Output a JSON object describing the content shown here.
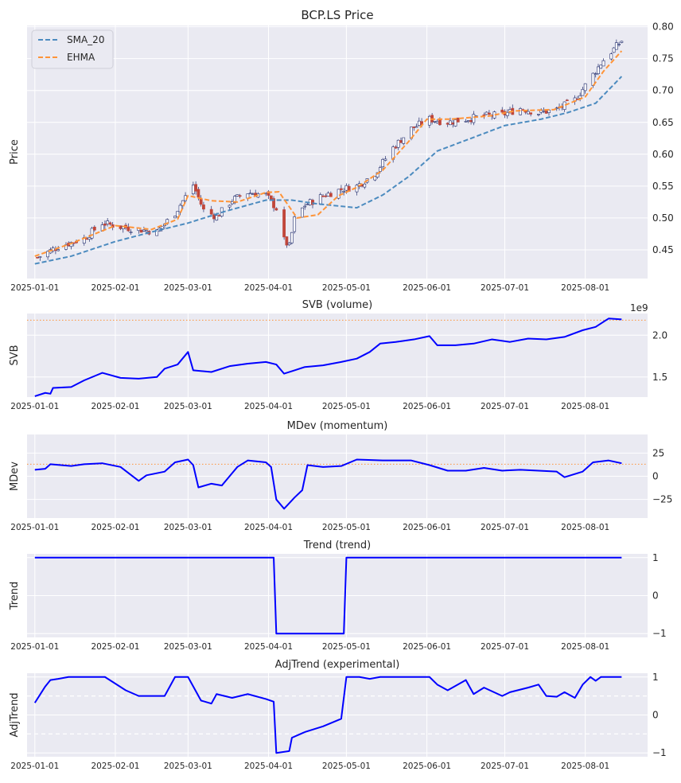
{
  "colors": {
    "panel_bg": "#eaeaf2",
    "grid": "#ffffff",
    "line": "#0000ff",
    "sma": "#4c8bbf",
    "ehma": "#ff9438",
    "ref_orange": "#ff9438",
    "candle_up": "#1f2a6b",
    "candle_down": "#c0463a"
  },
  "chart_data": [
    {
      "type": "line",
      "chart_kind": "candlestick",
      "title": "BCP.LS Price",
      "ylabel": "Price",
      "ylim": [
        0.405,
        0.802
      ],
      "yticks": [
        0.45,
        0.5,
        0.55,
        0.6,
        0.65,
        0.7,
        0.75,
        0.8
      ],
      "ytick_labels": [
        "0.45",
        "0.50",
        "0.55",
        "0.60",
        "0.65",
        "0.70",
        "0.75",
        "0.80"
      ],
      "xrange": [
        "2024-12-29",
        "2025-08-25"
      ],
      "xticks": [
        "2025-01-01",
        "2025-02-01",
        "2025-03-01",
        "2025-04-01",
        "2025-05-01",
        "2025-06-01",
        "2025-07-01",
        "2025-08-01"
      ],
      "legend": {
        "placement": "upper-left",
        "entries": [
          "SMA_20",
          "EHMA"
        ]
      },
      "grid": true,
      "close_anchors": [
        [
          "2025-01-02",
          0.438
        ],
        [
          "2025-01-10",
          0.455
        ],
        [
          "2025-01-20",
          0.468
        ],
        [
          "2025-01-27",
          0.492
        ],
        [
          "2025-02-03",
          0.486
        ],
        [
          "2025-02-10",
          0.482
        ],
        [
          "2025-02-17",
          0.478
        ],
        [
          "2025-02-24",
          0.508
        ],
        [
          "2025-03-03",
          0.552
        ],
        [
          "2025-03-07",
          0.512
        ],
        [
          "2025-03-12",
          0.502
        ],
        [
          "2025-03-18",
          0.528
        ],
        [
          "2025-03-24",
          0.54
        ],
        [
          "2025-03-31",
          0.536
        ],
        [
          "2025-04-04",
          0.515
        ],
        [
          "2025-04-07",
          0.465
        ],
        [
          "2025-04-09",
          0.455
        ],
        [
          "2025-04-11",
          0.498
        ],
        [
          "2025-04-15",
          0.52
        ],
        [
          "2025-04-22",
          0.535
        ],
        [
          "2025-04-29",
          0.545
        ],
        [
          "2025-05-05",
          0.55
        ],
        [
          "2025-05-12",
          0.57
        ],
        [
          "2025-05-19",
          0.61
        ],
        [
          "2025-05-26",
          0.64
        ],
        [
          "2025-06-02",
          0.655
        ],
        [
          "2025-06-09",
          0.65
        ],
        [
          "2025-06-16",
          0.655
        ],
        [
          "2025-06-23",
          0.66
        ],
        [
          "2025-06-30",
          0.662
        ],
        [
          "2025-07-07",
          0.672
        ],
        [
          "2025-07-14",
          0.665
        ],
        [
          "2025-07-21",
          0.67
        ],
        [
          "2025-07-28",
          0.685
        ],
        [
          "2025-08-04",
          0.725
        ],
        [
          "2025-08-08",
          0.748
        ],
        [
          "2025-08-12",
          0.765
        ],
        [
          "2025-08-15",
          0.778
        ]
      ],
      "sma_20": [
        [
          "2025-01-01",
          0.428
        ],
        [
          "2025-01-15",
          0.44
        ],
        [
          "2025-02-01",
          0.463
        ],
        [
          "2025-02-15",
          0.478
        ],
        [
          "2025-03-01",
          0.492
        ],
        [
          "2025-03-15",
          0.51
        ],
        [
          "2025-03-31",
          0.528
        ],
        [
          "2025-04-10",
          0.528
        ],
        [
          "2025-04-20",
          0.522
        ],
        [
          "2025-05-05",
          0.516
        ],
        [
          "2025-05-15",
          0.536
        ],
        [
          "2025-05-25",
          0.565
        ],
        [
          "2025-06-05",
          0.605
        ],
        [
          "2025-06-20",
          0.628
        ],
        [
          "2025-07-01",
          0.645
        ],
        [
          "2025-07-15",
          0.655
        ],
        [
          "2025-07-25",
          0.665
        ],
        [
          "2025-08-05",
          0.68
        ],
        [
          "2025-08-15",
          0.722
        ]
      ],
      "ehma": [
        [
          "2025-01-01",
          0.44
        ],
        [
          "2025-01-15",
          0.46
        ],
        [
          "2025-02-01",
          0.488
        ],
        [
          "2025-02-15",
          0.482
        ],
        [
          "2025-02-25",
          0.498
        ],
        [
          "2025-03-01",
          0.535
        ],
        [
          "2025-03-10",
          0.527
        ],
        [
          "2025-03-20",
          0.525
        ],
        [
          "2025-03-31",
          0.54
        ],
        [
          "2025-04-05",
          0.541
        ],
        [
          "2025-04-12",
          0.5
        ],
        [
          "2025-04-20",
          0.505
        ],
        [
          "2025-04-28",
          0.535
        ],
        [
          "2025-05-05",
          0.548
        ],
        [
          "2025-05-15",
          0.575
        ],
        [
          "2025-05-25",
          0.62
        ],
        [
          "2025-06-01",
          0.655
        ],
        [
          "2025-06-10",
          0.655
        ],
        [
          "2025-06-25",
          0.66
        ],
        [
          "2025-07-05",
          0.668
        ],
        [
          "2025-07-20",
          0.67
        ],
        [
          "2025-08-01",
          0.69
        ],
        [
          "2025-08-08",
          0.73
        ],
        [
          "2025-08-15",
          0.762
        ]
      ]
    },
    {
      "type": "line",
      "title": "SVB (volume)",
      "ylabel": "SVB",
      "ylim": [
        1260000000.0,
        2260000000.0
      ],
      "yticks": [
        1500000000.0,
        2000000000.0
      ],
      "ytick_labels": [
        "1.5",
        "2.0"
      ],
      "offset_label": "1e9",
      "reference_line": 2180000000.0,
      "xrange": [
        "2024-12-29",
        "2025-08-25"
      ],
      "xticks": [
        "2025-01-01",
        "2025-02-01",
        "2025-03-01",
        "2025-04-01",
        "2025-05-01",
        "2025-06-01",
        "2025-07-01",
        "2025-08-01"
      ],
      "grid": true,
      "points": [
        [
          "2025-01-01",
          1270000000.0
        ],
        [
          "2025-01-05",
          1310000000.0
        ],
        [
          "2025-01-07",
          1300000000.0
        ],
        [
          "2025-01-08",
          1370000000.0
        ],
        [
          "2025-01-15",
          1380000000.0
        ],
        [
          "2025-01-20",
          1460000000.0
        ],
        [
          "2025-01-27",
          1550000000.0
        ],
        [
          "2025-02-03",
          1490000000.0
        ],
        [
          "2025-02-10",
          1480000000.0
        ],
        [
          "2025-02-17",
          1500000000.0
        ],
        [
          "2025-02-20",
          1600000000.0
        ],
        [
          "2025-02-25",
          1650000000.0
        ],
        [
          "2025-03-01",
          1800000000.0
        ],
        [
          "2025-03-03",
          1580000000.0
        ],
        [
          "2025-03-10",
          1560000000.0
        ],
        [
          "2025-03-17",
          1630000000.0
        ],
        [
          "2025-03-24",
          1660000000.0
        ],
        [
          "2025-03-31",
          1680000000.0
        ],
        [
          "2025-04-04",
          1650000000.0
        ],
        [
          "2025-04-07",
          1540000000.0
        ],
        [
          "2025-04-11",
          1580000000.0
        ],
        [
          "2025-04-15",
          1620000000.0
        ],
        [
          "2025-04-22",
          1640000000.0
        ],
        [
          "2025-04-29",
          1680000000.0
        ],
        [
          "2025-05-05",
          1720000000.0
        ],
        [
          "2025-05-10",
          1800000000.0
        ],
        [
          "2025-05-14",
          1900000000.0
        ],
        [
          "2025-05-20",
          1920000000.0
        ],
        [
          "2025-05-27",
          1950000000.0
        ],
        [
          "2025-06-02",
          1990000000.0
        ],
        [
          "2025-06-05",
          1880000000.0
        ],
        [
          "2025-06-12",
          1880000000.0
        ],
        [
          "2025-06-19",
          1900000000.0
        ],
        [
          "2025-06-26",
          1950000000.0
        ],
        [
          "2025-07-03",
          1920000000.0
        ],
        [
          "2025-07-10",
          1960000000.0
        ],
        [
          "2025-07-17",
          1950000000.0
        ],
        [
          "2025-07-24",
          1980000000.0
        ],
        [
          "2025-07-31",
          2060000000.0
        ],
        [
          "2025-08-05",
          2100000000.0
        ],
        [
          "2025-08-10",
          2200000000.0
        ],
        [
          "2025-08-15",
          2190000000.0
        ]
      ]
    },
    {
      "type": "line",
      "title": "MDev (momentum)",
      "ylabel": "MDev",
      "ylim": [
        -45,
        45
      ],
      "yticks": [
        -25,
        0,
        25
      ],
      "ytick_labels": [
        "−25",
        "0",
        "25"
      ],
      "reference_line": 13,
      "xrange": [
        "2024-12-29",
        "2025-08-25"
      ],
      "xticks": [
        "2025-01-01",
        "2025-02-01",
        "2025-03-01",
        "2025-04-01",
        "2025-05-01",
        "2025-06-01",
        "2025-07-01",
        "2025-08-01"
      ],
      "grid": true,
      "points": [
        [
          "2025-01-01",
          7
        ],
        [
          "2025-01-05",
          8
        ],
        [
          "2025-01-07",
          13
        ],
        [
          "2025-01-15",
          11
        ],
        [
          "2025-01-20",
          13
        ],
        [
          "2025-01-27",
          14
        ],
        [
          "2025-02-03",
          10
        ],
        [
          "2025-02-10",
          -5
        ],
        [
          "2025-02-13",
          1
        ],
        [
          "2025-02-20",
          5
        ],
        [
          "2025-02-24",
          15
        ],
        [
          "2025-03-01",
          18
        ],
        [
          "2025-03-03",
          12
        ],
        [
          "2025-03-05",
          -12
        ],
        [
          "2025-03-10",
          -8
        ],
        [
          "2025-03-14",
          -10
        ],
        [
          "2025-03-17",
          0
        ],
        [
          "2025-03-20",
          10
        ],
        [
          "2025-03-24",
          17
        ],
        [
          "2025-03-31",
          15
        ],
        [
          "2025-04-02",
          10
        ],
        [
          "2025-04-04",
          -25
        ],
        [
          "2025-04-07",
          -35
        ],
        [
          "2025-04-11",
          -23
        ],
        [
          "2025-04-14",
          -15
        ],
        [
          "2025-04-16",
          12
        ],
        [
          "2025-04-22",
          10
        ],
        [
          "2025-04-29",
          11
        ],
        [
          "2025-05-05",
          18
        ],
        [
          "2025-05-15",
          17
        ],
        [
          "2025-05-26",
          17
        ],
        [
          "2025-06-02",
          12
        ],
        [
          "2025-06-09",
          6
        ],
        [
          "2025-06-16",
          6
        ],
        [
          "2025-06-23",
          9
        ],
        [
          "2025-06-30",
          6
        ],
        [
          "2025-07-07",
          7
        ],
        [
          "2025-07-14",
          6
        ],
        [
          "2025-07-21",
          5
        ],
        [
          "2025-07-24",
          -1
        ],
        [
          "2025-07-31",
          5
        ],
        [
          "2025-08-04",
          15
        ],
        [
          "2025-08-10",
          17
        ],
        [
          "2025-08-15",
          14
        ]
      ]
    },
    {
      "type": "line",
      "title": "Trend (trend)",
      "ylabel": "Trend",
      "ylim": [
        -1.1,
        1.1
      ],
      "yticks": [
        -1,
        0,
        1
      ],
      "ytick_labels": [
        "−1",
        "0",
        "1"
      ],
      "xrange": [
        "2024-12-29",
        "2025-08-25"
      ],
      "xticks": [
        "2025-01-01",
        "2025-02-01",
        "2025-03-01",
        "2025-04-01",
        "2025-05-01",
        "2025-06-01",
        "2025-07-01",
        "2025-08-01"
      ],
      "grid": true,
      "points": [
        [
          "2025-01-01",
          1
        ],
        [
          "2025-04-03",
          1
        ],
        [
          "2025-04-04",
          -1
        ],
        [
          "2025-04-30",
          -1
        ],
        [
          "2025-05-01",
          1
        ],
        [
          "2025-08-15",
          1
        ]
      ]
    },
    {
      "type": "line",
      "title": "AdjTrend (experimental)",
      "ylabel": "AdjTrend",
      "ylim": [
        -1.1,
        1.1
      ],
      "yticks": [
        -1,
        0,
        1
      ],
      "ytick_labels": [
        "−1",
        "0",
        "1"
      ],
      "reference_lines": [
        0.5,
        -0.5
      ],
      "xrange": [
        "2024-12-29",
        "2025-08-25"
      ],
      "xticks": [
        "2025-01-01",
        "2025-02-01",
        "2025-03-01",
        "2025-04-01",
        "2025-05-01",
        "2025-06-01",
        "2025-07-01",
        "2025-08-01"
      ],
      "grid": true,
      "points": [
        [
          "2025-01-01",
          0.32
        ],
        [
          "2025-01-05",
          0.75
        ],
        [
          "2025-01-07",
          0.92
        ],
        [
          "2025-01-10",
          0.95
        ],
        [
          "2025-01-14",
          1.0
        ],
        [
          "2025-01-28",
          1.0
        ],
        [
          "2025-02-05",
          0.65
        ],
        [
          "2025-02-10",
          0.5
        ],
        [
          "2025-02-20",
          0.5
        ],
        [
          "2025-02-24",
          1.0
        ],
        [
          "2025-03-01",
          1.0
        ],
        [
          "2025-03-06",
          0.38
        ],
        [
          "2025-03-10",
          0.3
        ],
        [
          "2025-03-12",
          0.55
        ],
        [
          "2025-03-18",
          0.45
        ],
        [
          "2025-03-24",
          0.55
        ],
        [
          "2025-03-31",
          0.42
        ],
        [
          "2025-04-03",
          0.35
        ],
        [
          "2025-04-04",
          -1.0
        ],
        [
          "2025-04-09",
          -0.95
        ],
        [
          "2025-04-10",
          -0.6
        ],
        [
          "2025-04-15",
          -0.45
        ],
        [
          "2025-04-22",
          -0.3
        ],
        [
          "2025-04-29",
          -0.1
        ],
        [
          "2025-05-01",
          1.0
        ],
        [
          "2025-05-06",
          1.0
        ],
        [
          "2025-05-10",
          0.95
        ],
        [
          "2025-05-14",
          1.0
        ],
        [
          "2025-06-02",
          1.0
        ],
        [
          "2025-06-05",
          0.8
        ],
        [
          "2025-06-09",
          0.65
        ],
        [
          "2025-06-16",
          0.92
        ],
        [
          "2025-06-19",
          0.55
        ],
        [
          "2025-06-23",
          0.72
        ],
        [
          "2025-06-30",
          0.5
        ],
        [
          "2025-07-03",
          0.6
        ],
        [
          "2025-07-10",
          0.72
        ],
        [
          "2025-07-14",
          0.8
        ],
        [
          "2025-07-17",
          0.5
        ],
        [
          "2025-07-21",
          0.48
        ],
        [
          "2025-07-24",
          0.6
        ],
        [
          "2025-07-28",
          0.45
        ],
        [
          "2025-07-31",
          0.8
        ],
        [
          "2025-08-03",
          1.0
        ],
        [
          "2025-08-05",
          0.9
        ],
        [
          "2025-08-07",
          1.0
        ],
        [
          "2025-08-15",
          1.0
        ]
      ]
    }
  ]
}
